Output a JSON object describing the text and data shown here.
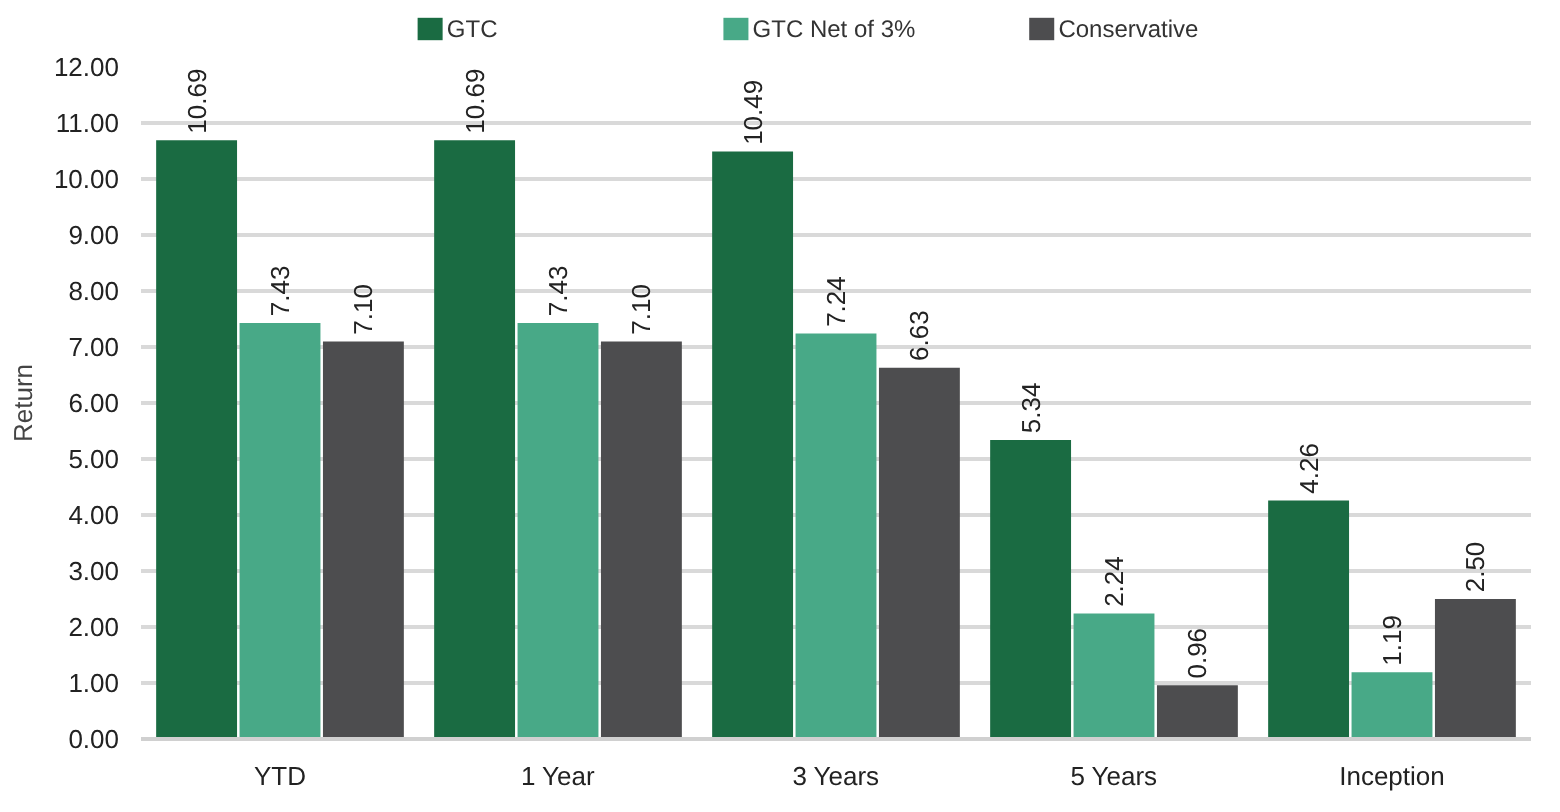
{
  "chart_data": {
    "type": "bar",
    "categories": [
      "YTD",
      "1 Year",
      "3 Years",
      "5 Years",
      "Inception"
    ],
    "ylabel": "Return",
    "series": [
      {
        "name": "GTC",
        "color": "#1a6b42",
        "values": [
          10.69,
          10.69,
          10.49,
          5.34,
          4.26
        ]
      },
      {
        "name": "GTC Net of 3%",
        "color": "#48a987",
        "values": [
          7.43,
          7.43,
          7.24,
          2.24,
          1.19
        ]
      },
      {
        "name": "Conservative",
        "color": "#4d4d4f",
        "values": [
          7.1,
          7.1,
          6.63,
          0.96,
          2.5
        ]
      }
    ],
    "value_labels": [
      [
        "10.69",
        "10.69",
        "10.49",
        "5.34",
        "4.26"
      ],
      [
        "7.43",
        "7.43",
        "7.24",
        "2.24",
        "1.19"
      ],
      [
        "7.10",
        "7.10",
        "6.63",
        "0.96",
        "2.50"
      ]
    ],
    "ylim": [
      0,
      12
    ],
    "yticks": [
      {
        "value": 0,
        "label": "0.00"
      },
      {
        "value": 1,
        "label": "1.00"
      },
      {
        "value": 2,
        "label": "2.00"
      },
      {
        "value": 3,
        "label": "3.00"
      },
      {
        "value": 4,
        "label": "4.00"
      },
      {
        "value": 5,
        "label": "5.00"
      },
      {
        "value": 6,
        "label": "6.00"
      },
      {
        "value": 7,
        "label": "7.00"
      },
      {
        "value": 8,
        "label": "8.00"
      },
      {
        "value": 9,
        "label": "9.00"
      },
      {
        "value": 10,
        "label": "10.00"
      },
      {
        "value": 11,
        "label": "11.00"
      },
      {
        "value": 12,
        "label": "12.00"
      }
    ],
    "grid": "y",
    "legend": "top"
  }
}
